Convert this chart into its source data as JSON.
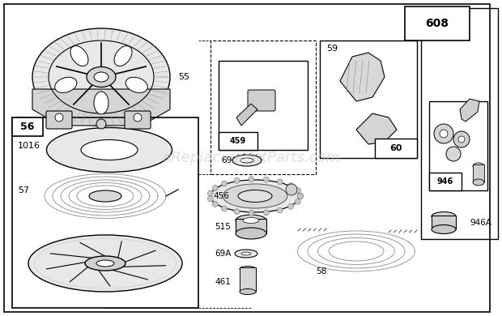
{
  "bg_color": "#ffffff",
  "watermark": "eReplacementParts.com",
  "watermark_color": "#c8c8c8",
  "watermark_alpha": 0.55
}
